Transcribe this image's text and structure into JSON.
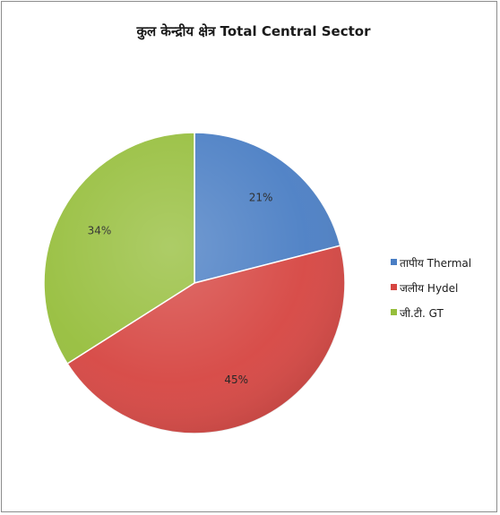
{
  "chart_data": {
    "type": "pie",
    "title": "कुल केन्द्रीय क्षेत्र Total Central Sector",
    "legend_position": "right",
    "slices": [
      {
        "label": "तापीय Thermal",
        "value": 21,
        "value_label": "21%",
        "color": "#4a7ec4"
      },
      {
        "label": "जलीय Hydel",
        "value": 45,
        "value_label": "45%",
        "color": "#d64541"
      },
      {
        "label": "जी.टी. GT",
        "value": 34,
        "value_label": "34%",
        "color": "#96be3c"
      }
    ]
  }
}
